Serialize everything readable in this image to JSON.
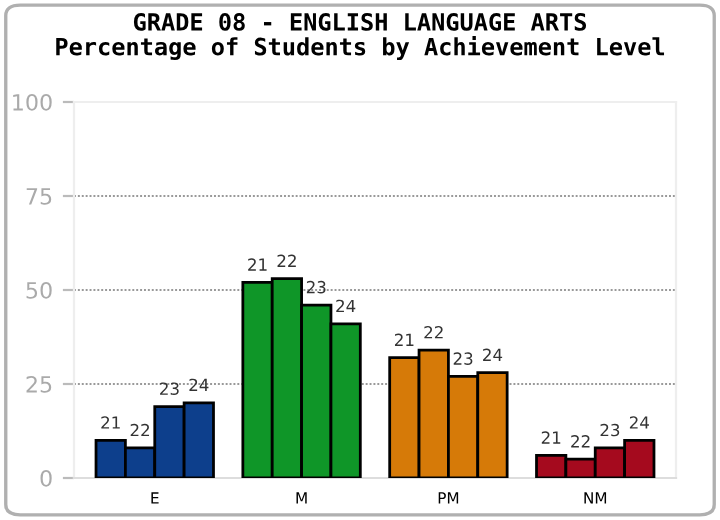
{
  "chart_data": {
    "type": "bar",
    "title": "GRADE 08 - ENGLISH LANGUAGE ARTS",
    "subtitle": "Percentage of Students by Achievement Level",
    "categories": [
      "E",
      "M",
      "PM",
      "NM"
    ],
    "series": [
      {
        "name": "21",
        "colors": [
          "#0d3f8c",
          "#0f9628",
          "#d67a08",
          "#a50a1e"
        ],
        "values": [
          10,
          52,
          32,
          6
        ]
      },
      {
        "name": "22",
        "colors": [
          "#0d3f8c",
          "#0f9628",
          "#d67a08",
          "#a50a1e"
        ],
        "values": [
          8,
          53,
          34,
          5
        ]
      },
      {
        "name": "23",
        "colors": [
          "#0d3f8c",
          "#0f9628",
          "#d67a08",
          "#a50a1e"
        ],
        "values": [
          19,
          46,
          27,
          8
        ]
      },
      {
        "name": "24",
        "colors": [
          "#0d3f8c",
          "#0f9628",
          "#d67a08",
          "#a50a1e"
        ],
        "values": [
          20,
          41,
          28,
          10
        ]
      }
    ],
    "ylim": [
      0,
      100
    ],
    "yticks": [
      0,
      25,
      50,
      75,
      100
    ],
    "grid": "y",
    "legend": false
  }
}
